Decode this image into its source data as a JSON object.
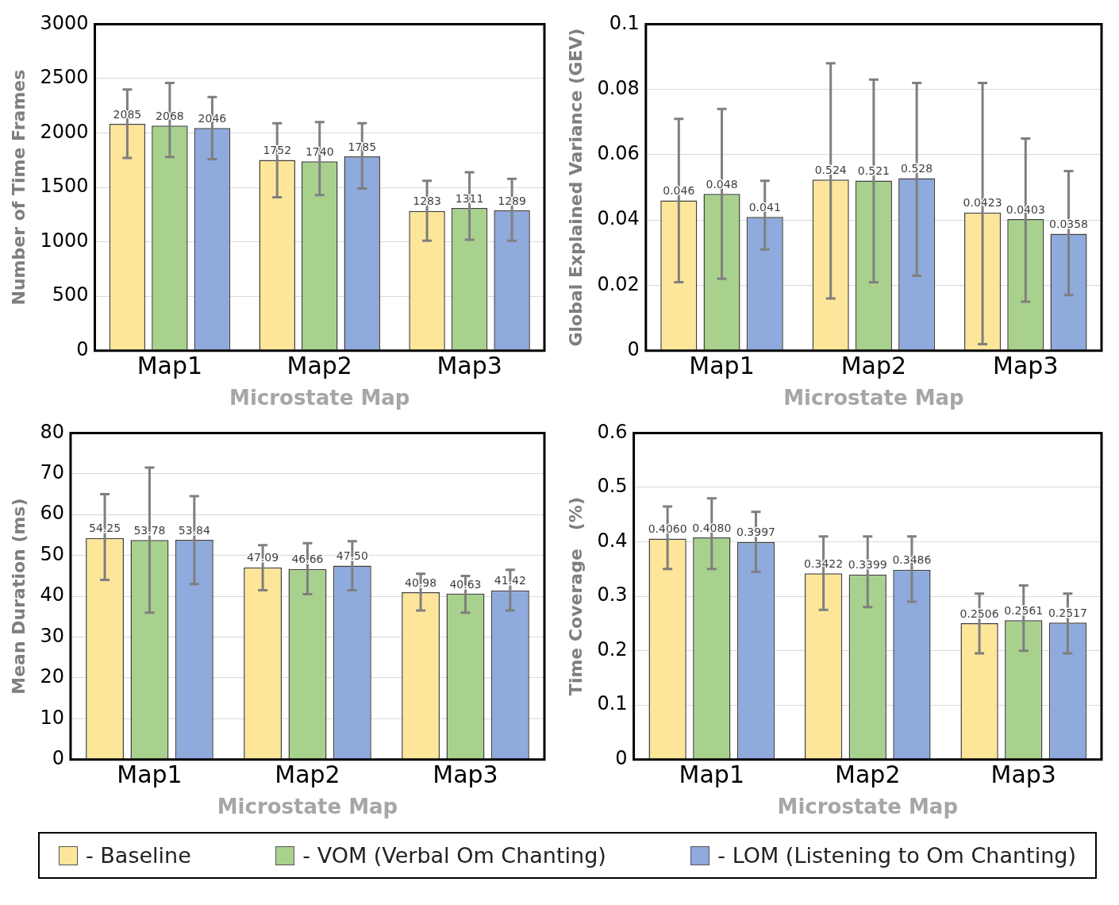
{
  "chart_data": [
    {
      "type": "bar",
      "xlabel": "Microstate Map",
      "ylabel": "Number of Time Frames",
      "categories": [
        "Map1",
        "Map2",
        "Map3"
      ],
      "ylim": [
        0,
        3000
      ],
      "yticks": [
        0,
        500,
        1000,
        1500,
        2000,
        2500,
        3000
      ],
      "grid": "y",
      "legend": "bottom",
      "series": [
        {
          "name": "- Baseline",
          "color": "#fde699",
          "values": [
            2085,
            1752,
            1283
          ],
          "errors": [
            [
              1770,
              2400
            ],
            [
              1410,
              2090
            ],
            [
              1010,
              1560
            ]
          ],
          "value_labels": [
            "2085",
            "1752",
            "1283"
          ]
        },
        {
          "name": "- VOM (Verbal Om Chanting)",
          "color": "#a9d18e",
          "values": [
            2068,
            1740,
            1311
          ],
          "errors": [
            [
              1780,
              2460
            ],
            [
              1430,
              2100
            ],
            [
              1020,
              1640
            ]
          ],
          "value_labels": [
            "2068",
            "1740",
            "1311"
          ]
        },
        {
          "name": "- LOM (Listening to Om Chanting)",
          "color": "#8faadc",
          "values": [
            2046,
            1785,
            1289
          ],
          "errors": [
            [
              1760,
              2330
            ],
            [
              1490,
              2090
            ],
            [
              1010,
              1580
            ]
          ],
          "value_labels": [
            "2046",
            "1785",
            "1289"
          ]
        }
      ]
    },
    {
      "type": "bar",
      "xlabel": "Microstate Map",
      "ylabel": "Global Explained Variance (GEV)",
      "categories": [
        "Map1",
        "Map2",
        "Map3"
      ],
      "ylim": [
        0,
        0.1
      ],
      "yticks": [
        0,
        0.02,
        0.04,
        0.06,
        0.08,
        0.1
      ],
      "grid": "y",
      "legend": "bottom",
      "series": [
        {
          "name": "- Baseline",
          "color": "#fde699",
          "values": [
            0.046,
            0.0524,
            0.0423
          ],
          "errors": [
            [
              0.021,
              0.071
            ],
            [
              0.016,
              0.088
            ],
            [
              0.002,
              0.082
            ]
          ],
          "value_labels": [
            "0.046",
            null,
            "0.0423"
          ]
        },
        {
          "name": "- VOM (Verbal Om Chanting)",
          "color": "#a9d18e",
          "values": [
            0.048,
            0.0521,
            0.0403
          ],
          "errors": [
            [
              0.022,
              0.074
            ],
            [
              0.021,
              0.083
            ],
            [
              0.015,
              0.065
            ]
          ],
          "value_labels": [
            "0.048",
            null,
            "0.0403"
          ]
        },
        {
          "name": "- LOM (Listening to Om Chanting)",
          "color": "#8faadc",
          "values": [
            0.041,
            0.0528,
            0.0358
          ],
          "errors": [
            [
              0.031,
              0.052
            ],
            [
              0.023,
              0.082
            ],
            [
              0.017,
              0.055
            ]
          ],
          "value_labels": [
            "0.041",
            null,
            "0.0358"
          ]
        }
      ],
      "annotations": [
        {
          "text": "0.524",
          "x": "Map2",
          "y": 0.0524
        },
        {
          "text": "0.521",
          "x": "Map2",
          "y": 0.0521
        },
        {
          "text": "0.528",
          "x": "Map2",
          "y": 0.0528
        }
      ]
    },
    {
      "type": "bar",
      "xlabel": "Microstate Map",
      "ylabel": "Mean Duration (ms)",
      "categories": [
        "Map1",
        "Map2",
        "Map3"
      ],
      "ylim": [
        0,
        80
      ],
      "yticks": [
        0,
        10,
        20,
        30,
        40,
        50,
        60,
        70,
        80
      ],
      "grid": "y",
      "legend": "bottom",
      "series": [
        {
          "name": "- Baseline",
          "color": "#fde699",
          "values": [
            54.25,
            47.09,
            40.98
          ],
          "errors": [
            [
              44,
              65
            ],
            [
              41.5,
              52.5
            ],
            [
              36.5,
              45.5
            ]
          ],
          "value_labels": [
            "54.25",
            "47.09",
            "40.98"
          ]
        },
        {
          "name": "- VOM (Verbal Om Chanting)",
          "color": "#a9d18e",
          "values": [
            53.78,
            46.66,
            40.63
          ],
          "errors": [
            [
              36,
              71.5
            ],
            [
              40.5,
              53
            ],
            [
              36,
              45
            ]
          ],
          "value_labels": [
            "53.78",
            "46.66",
            "40.63"
          ]
        },
        {
          "name": "- LOM (Listening to Om Chanting)",
          "color": "#8faadc",
          "values": [
            53.84,
            47.5,
            41.42
          ],
          "errors": [
            [
              43,
              64.5
            ],
            [
              41.5,
              53.5
            ],
            [
              36.5,
              46.5
            ]
          ],
          "value_labels": [
            "53.84",
            "47.50",
            "41.42"
          ]
        }
      ]
    },
    {
      "type": "bar",
      "xlabel": "Microstate Map",
      "ylabel": "Time Coverage   (%)",
      "categories": [
        "Map1",
        "Map2",
        "Map3"
      ],
      "ylim": [
        0,
        0.6
      ],
      "yticks": [
        0,
        0.1,
        0.2,
        0.3,
        0.4,
        0.5,
        0.6
      ],
      "grid": "y",
      "legend": "bottom",
      "series": [
        {
          "name": "- Baseline",
          "color": "#fde699",
          "values": [
            0.406,
            0.3422,
            0.2506
          ],
          "errors": [
            [
              0.35,
              0.465
            ],
            [
              0.275,
              0.41
            ],
            [
              0.195,
              0.305
            ]
          ],
          "value_labels": [
            "0.4060",
            "0.3422",
            "0.2506"
          ]
        },
        {
          "name": "- VOM (Verbal Om Chanting)",
          "color": "#a9d18e",
          "values": [
            0.408,
            0.3399,
            0.2561
          ],
          "errors": [
            [
              0.35,
              0.48
            ],
            [
              0.28,
              0.41
            ],
            [
              0.2,
              0.32
            ]
          ],
          "value_labels": [
            "0.4080",
            "0.3399",
            "0.2561"
          ]
        },
        {
          "name": "- LOM (Listening to Om Chanting)",
          "color": "#8faadc",
          "values": [
            0.3997,
            0.3486,
            0.2517
          ],
          "errors": [
            [
              0.345,
              0.455
            ],
            [
              0.29,
              0.41
            ],
            [
              0.195,
              0.305
            ]
          ],
          "value_labels": [
            "0.3997",
            "0.3486",
            "0.2517"
          ]
        }
      ]
    }
  ]
}
